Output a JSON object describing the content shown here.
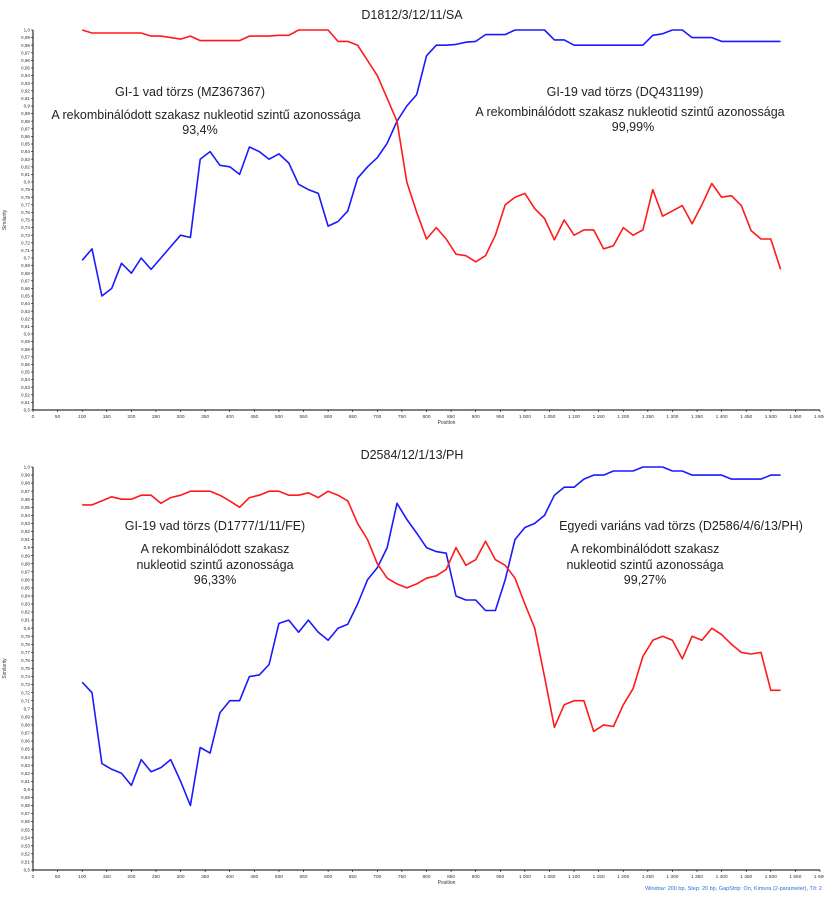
{
  "chart_data": [
    {
      "type": "line",
      "title": "D1812/3/12/11/SA",
      "xlabel": "Position",
      "ylabel": "Similarity",
      "xlim": [
        0,
        1600
      ],
      "ylim": [
        0.5,
        1.0
      ],
      "x_ticks": [
        "0",
        "50",
        "100",
        "150",
        "200",
        "250",
        "300",
        "350",
        "400",
        "450",
        "500",
        "550",
        "600",
        "650",
        "700",
        "750",
        "800",
        "850",
        "900",
        "950",
        "1 000",
        "1 050",
        "1 100",
        "1 150",
        "1 200",
        "1 250",
        "1 300",
        "1 350",
        "1 400",
        "1 450",
        "1 500",
        "1 550",
        "1 600"
      ],
      "y_ticks": [
        "0,5",
        "0,51",
        "0,52",
        "0,53",
        "0,54",
        "0,55",
        "0,56",
        "0,57",
        "0,58",
        "0,59",
        "0,6",
        "0,61",
        "0,62",
        "0,63",
        "0,64",
        "0,65",
        "0,66",
        "0,67",
        "0,68",
        "0,69",
        "0,7",
        "0,71",
        "0,72",
        "0,73",
        "0,74",
        "0,75",
        "0,76",
        "0,77",
        "0,78",
        "0,79",
        "0,8",
        "0,81",
        "0,82",
        "0,83",
        "0,84",
        "0,85",
        "0,86",
        "0,87",
        "0,88",
        "0,89",
        "0,9",
        "0,91",
        "0,92",
        "0,93",
        "0,94",
        "0,95",
        "0,96",
        "0,97",
        "0,98",
        "0,99",
        "1,0"
      ],
      "x": [
        100,
        120,
        140,
        160,
        180,
        200,
        220,
        240,
        260,
        280,
        300,
        320,
        340,
        360,
        380,
        400,
        420,
        440,
        460,
        480,
        500,
        520,
        540,
        560,
        580,
        600,
        620,
        640,
        660,
        680,
        700,
        720,
        740,
        760,
        780,
        800,
        820,
        840,
        860,
        880,
        900,
        920,
        940,
        960,
        980,
        1000,
        1020,
        1040,
        1060,
        1080,
        1100,
        1120,
        1140,
        1160,
        1180,
        1200,
        1220,
        1240,
        1260,
        1280,
        1300,
        1320,
        1340,
        1360,
        1380,
        1400,
        1420,
        1440,
        1460,
        1480,
        1500,
        1520
      ],
      "series": [
        {
          "color": "#1a1aff",
          "values": [
            0.697,
            0.712,
            0.65,
            0.66,
            0.693,
            0.68,
            0.7,
            0.685,
            0.7,
            0.715,
            0.73,
            0.727,
            0.83,
            0.84,
            0.822,
            0.82,
            0.81,
            0.846,
            0.84,
            0.83,
            0.837,
            0.825,
            0.797,
            0.79,
            0.785,
            0.742,
            0.748,
            0.762,
            0.805,
            0.82,
            0.832,
            0.851,
            0.88,
            0.9,
            0.915,
            0.966,
            0.98,
            0.98,
            0.981,
            0.984,
            0.985,
            0.994,
            0.994,
            0.994,
            1.0,
            1.0,
            1.0,
            1.0,
            0.987,
            0.987,
            0.98,
            0.98,
            0.98,
            0.98,
            0.98,
            0.98,
            0.98,
            0.98,
            0.993,
            0.995,
            1.0,
            1.0,
            0.99,
            0.99,
            0.99,
            0.985,
            0.985,
            0.985,
            0.985,
            0.985,
            0.985,
            0.985
          ]
        },
        {
          "color": "#ff1a1a",
          "values": [
            1.0,
            0.996,
            0.996,
            0.996,
            0.996,
            0.996,
            0.996,
            0.992,
            0.992,
            0.99,
            0.988,
            0.992,
            0.986,
            0.986,
            0.986,
            0.986,
            0.986,
            0.992,
            0.992,
            0.992,
            0.993,
            0.993,
            1.0,
            1.0,
            1.0,
            1.0,
            0.985,
            0.985,
            0.98,
            0.96,
            0.94,
            0.91,
            0.88,
            0.8,
            0.76,
            0.725,
            0.74,
            0.725,
            0.705,
            0.703,
            0.695,
            0.703,
            0.73,
            0.77,
            0.78,
            0.785,
            0.765,
            0.752,
            0.724,
            0.75,
            0.73,
            0.737,
            0.737,
            0.712,
            0.716,
            0.74,
            0.73,
            0.737,
            0.79,
            0.755,
            0.762,
            0.769,
            0.745,
            0.77,
            0.798,
            0.78,
            0.782,
            0.769,
            0.736,
            0.725,
            0.725,
            0.685
          ]
        }
      ],
      "annotations": [
        {
          "line1": "GI-1 vad törzs (MZ367367)",
          "line2": "A rekombinálódott szakasz nukleotid szintű azonossága",
          "line3": "93,4%"
        },
        {
          "line1": "GI-19 vad törzs (DQ431199)",
          "line2": "A rekombinálódott szakasz nukleotid szintű azonossága",
          "line3": "99,99%"
        }
      ],
      "legend": "none",
      "grid": false
    },
    {
      "type": "line",
      "title": "D2584/12/1/13/PH",
      "xlabel": "Position",
      "ylabel": "Similarity",
      "xlim": [
        0,
        1600
      ],
      "ylim": [
        0.5,
        1.0
      ],
      "x_ticks": [
        "0",
        "50",
        "100",
        "150",
        "200",
        "250",
        "300",
        "350",
        "400",
        "450",
        "500",
        "550",
        "600",
        "650",
        "700",
        "750",
        "800",
        "850",
        "900",
        "950",
        "1 000",
        "1 050",
        "1 100",
        "1 150",
        "1 200",
        "1 250",
        "1 300",
        "1 350",
        "1 400",
        "1 450",
        "1 500",
        "1 550",
        "1 600"
      ],
      "y_ticks": [
        "0,5",
        "0,51",
        "0,52",
        "0,53",
        "0,54",
        "0,55",
        "0,56",
        "0,57",
        "0,58",
        "0,59",
        "0,6",
        "0,61",
        "0,62",
        "0,63",
        "0,64",
        "0,65",
        "0,66",
        "0,67",
        "0,68",
        "0,69",
        "0,7",
        "0,71",
        "0,72",
        "0,73",
        "0,74",
        "0,75",
        "0,76",
        "0,77",
        "0,78",
        "0,79",
        "0,8",
        "0,81",
        "0,82",
        "0,83",
        "0,84",
        "0,85",
        "0,86",
        "0,87",
        "0,88",
        "0,89",
        "0,9",
        "0,91",
        "0,92",
        "0,93",
        "0,94",
        "0,95",
        "0,96",
        "0,97",
        "0,98",
        "0,99",
        "1,0"
      ],
      "x": [
        100,
        120,
        140,
        160,
        180,
        200,
        220,
        240,
        260,
        280,
        300,
        320,
        340,
        360,
        380,
        400,
        420,
        440,
        460,
        480,
        500,
        520,
        540,
        560,
        580,
        600,
        620,
        640,
        660,
        680,
        700,
        720,
        740,
        760,
        780,
        800,
        820,
        840,
        860,
        880,
        900,
        920,
        940,
        960,
        980,
        1000,
        1020,
        1040,
        1060,
        1080,
        1100,
        1120,
        1140,
        1160,
        1180,
        1200,
        1220,
        1240,
        1260,
        1280,
        1300,
        1320,
        1340,
        1360,
        1380,
        1400,
        1420,
        1440,
        1460,
        1480,
        1500,
        1520
      ],
      "series": [
        {
          "color": "#1a1aff",
          "values": [
            0.733,
            0.72,
            0.632,
            0.625,
            0.62,
            0.605,
            0.637,
            0.622,
            0.627,
            0.637,
            0.61,
            0.58,
            0.652,
            0.645,
            0.695,
            0.71,
            0.71,
            0.74,
            0.742,
            0.755,
            0.806,
            0.81,
            0.795,
            0.81,
            0.795,
            0.785,
            0.8,
            0.805,
            0.83,
            0.86,
            0.875,
            0.9,
            0.955,
            0.935,
            0.918,
            0.9,
            0.895,
            0.893,
            0.84,
            0.835,
            0.835,
            0.822,
            0.822,
            0.86,
            0.91,
            0.925,
            0.93,
            0.94,
            0.965,
            0.975,
            0.975,
            0.985,
            0.99,
            0.99,
            0.995,
            0.995,
            0.995,
            1.0,
            1.0,
            1.0,
            0.995,
            0.995,
            0.99,
            0.99,
            0.99,
            0.99,
            0.985,
            0.985,
            0.985,
            0.985,
            0.99,
            0.99
          ]
        },
        {
          "color": "#ff1a1a",
          "values": [
            0.953,
            0.953,
            0.958,
            0.963,
            0.96,
            0.96,
            0.965,
            0.965,
            0.955,
            0.962,
            0.965,
            0.97,
            0.97,
            0.97,
            0.965,
            0.958,
            0.95,
            0.962,
            0.965,
            0.97,
            0.97,
            0.965,
            0.965,
            0.968,
            0.962,
            0.97,
            0.965,
            0.958,
            0.93,
            0.91,
            0.88,
            0.862,
            0.855,
            0.85,
            0.855,
            0.862,
            0.865,
            0.873,
            0.9,
            0.878,
            0.885,
            0.908,
            0.885,
            0.878,
            0.862,
            0.83,
            0.8,
            0.74,
            0.677,
            0.705,
            0.71,
            0.71,
            0.672,
            0.68,
            0.678,
            0.705,
            0.725,
            0.765,
            0.785,
            0.79,
            0.785,
            0.762,
            0.79,
            0.785,
            0.8,
            0.792,
            0.78,
            0.77,
            0.768,
            0.77,
            0.723,
            0.723
          ]
        }
      ],
      "annotations": [
        {
          "line1": "GI-19 vad törzs (D1777/1/11/FE)",
          "line2": "A rekombinálódott szakasz",
          "line3": "nukleotid szintű azonossága",
          "line4": "96,33%"
        },
        {
          "line1": "Egyedi variáns vad törzs (D2586/4/6/13/PH)",
          "line2": "A rekombinálódott szakasz",
          "line3": "nukleotid szintű azonossága",
          "line4": "99,27%"
        }
      ],
      "legend": "none",
      "grid": false
    }
  ],
  "footer": "Window: 200 bp, Step: 20 bp, GapStrip: On, Kimura (2-parameter), T/t: 2"
}
